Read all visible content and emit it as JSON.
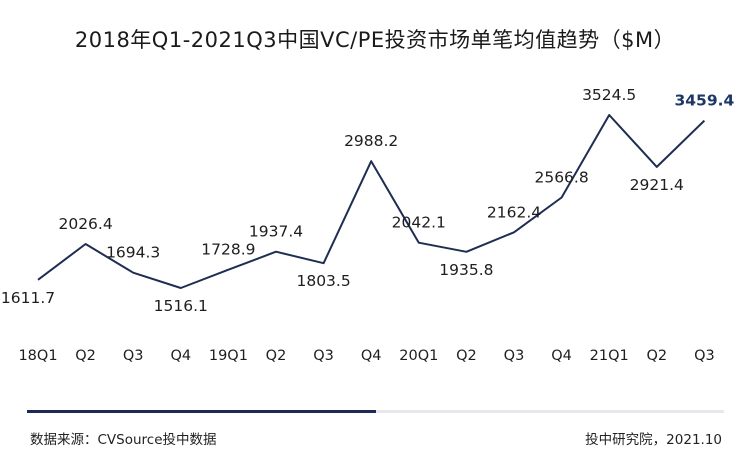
{
  "chart_data": {
    "type": "line",
    "title": "2018年Q1-2021Q3中国VC/PE投资市场单笔均值趋势（$M）",
    "categories": [
      "18Q1",
      "Q2",
      "Q3",
      "Q4",
      "19Q1",
      "Q2",
      "Q3",
      "Q4",
      "20Q1",
      "Q2",
      "Q3",
      "Q4",
      "21Q1",
      "Q2",
      "Q3"
    ],
    "values": [
      1611.7,
      2026.4,
      1694.3,
      1516.1,
      1728.9,
      1937.4,
      1803.5,
      2988.2,
      2042.1,
      1935.8,
      2162.4,
      2566.8,
      3524.5,
      2921.4,
      3459.4
    ],
    "data_labels": [
      "1611.7",
      "2026.4",
      "1694.3",
      "1516.1",
      "1728.9",
      "1937.4",
      "1803.5",
      "2988.2",
      "2042.1",
      "1935.8",
      "2162.4",
      "2566.8",
      "3524.5",
      "2921.4",
      "3459.4"
    ],
    "highlight_index": 14,
    "line_color": "#1e2d52",
    "highlight_color": "#1e3866",
    "grid": false,
    "legend": "none"
  },
  "footer": {
    "source": "数据来源：CVSource投中数据",
    "credit": "投中研究院，2021.10",
    "bar_color": "#1e2a55",
    "bar_track_color": "#e8e8ec"
  }
}
